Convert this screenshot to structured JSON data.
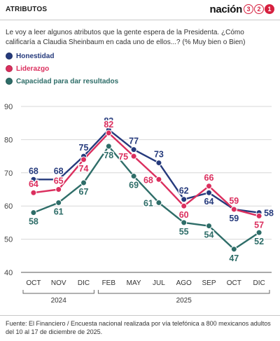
{
  "header": {
    "section_label": "ATRIBUTOS",
    "logo_text": "nación",
    "logo_digits": [
      "3",
      "2",
      "1"
    ]
  },
  "intro": "Le voy a leer algunos atributos que la gente espera de la Presidenta. ¿Cómo calificaría a Claudia Sheinbaum en cada uno de ellos...? (% Muy bien o Bien)",
  "colors": {
    "honestidad": "#253a7c",
    "liderazgo": "#db2f5e",
    "capacidad": "#2e6d68"
  },
  "chart_data": {
    "type": "line",
    "x": [
      "OCT",
      "NOV",
      "DIC",
      "FEB",
      "MAY",
      "JUL",
      "AGO",
      "SEP",
      "OCT",
      "DIC"
    ],
    "year_groups": [
      {
        "label": "2024",
        "from": 0,
        "to": 2
      },
      {
        "label": "2025",
        "from": 3,
        "to": 9
      }
    ],
    "ylim": [
      40,
      90
    ],
    "yticks": [
      40,
      50,
      60,
      70,
      80,
      90
    ],
    "grid": true,
    "legend_position": "top-left",
    "series": [
      {
        "name": "Honestidad",
        "color": "#253a7c",
        "values": [
          68,
          68,
          75,
          83,
          77,
          73,
          62,
          64,
          59,
          58
        ],
        "label_pos": [
          "above",
          "above",
          "above",
          "above",
          "above",
          "above",
          "above",
          "below",
          "below",
          "right"
        ]
      },
      {
        "name": "Liderazgo",
        "color": "#db2f5e",
        "values": [
          64,
          65,
          74,
          82,
          75,
          68,
          60,
          66,
          59,
          57
        ],
        "label_pos": [
          "above",
          "above",
          "below",
          "above",
          "left",
          "left",
          "below",
          "above",
          "above",
          "below"
        ]
      },
      {
        "name": "Capacidad para dar resultados",
        "color": "#2e6d68",
        "values": [
          58,
          61,
          67,
          78,
          69,
          61,
          55,
          54,
          47,
          52
        ],
        "label_pos": [
          "below",
          "below",
          "below",
          "below",
          "below",
          "left",
          "below",
          "below",
          "below",
          "below"
        ]
      }
    ]
  },
  "source": "Fuente: El Financiero / Encuesta nacional realizada por vía telefónica a 800 mexicanos adultos del 10 al 17 de diciembre de 2025."
}
